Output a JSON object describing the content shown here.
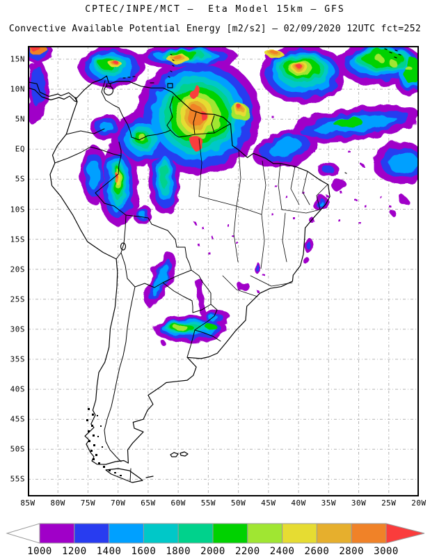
{
  "header": {
    "line1": "CPTEC/INPE/MCT —  Eta Model 15km — GFS",
    "line2": "Convective Available Potential Energy [m2/s2] — 02/09/2020 12UTC fct=252"
  },
  "axes": {
    "lat_ticks": [
      "15N",
      "10N",
      "5N",
      "EQ",
      "5S",
      "10S",
      "15S",
      "20S",
      "25S",
      "30S",
      "35S",
      "40S",
      "45S",
      "50S",
      "55S"
    ],
    "lon_ticks": [
      "85W",
      "80W",
      "75W",
      "70W",
      "65W",
      "60W",
      "55W",
      "50W",
      "45W",
      "40W",
      "35W",
      "30W",
      "25W",
      "20W"
    ]
  },
  "colorbar": {
    "labels": [
      "1000",
      "1200",
      "1400",
      "1600",
      "1800",
      "2000",
      "2200",
      "2400",
      "2600",
      "2800",
      "3000"
    ],
    "colors": [
      "#a000c8",
      "#283cf0",
      "#00a0ff",
      "#00c8c8",
      "#00d28c",
      "#00d200",
      "#a0e632",
      "#e6dc32",
      "#e6af2d",
      "#f08228"
    ],
    "underflow_color": "#ffffff",
    "overflow_color": "#fa3c3c",
    "outline_color": "#999999"
  },
  "chart_data": {
    "type": "heatmap",
    "title": "Convective Available Potential Energy [m2/s2]",
    "model": "Eta Model 15km — GFS",
    "institution": "CPTEC/INPE/MCT",
    "valid": "02/09/2020 12UTC fct=252",
    "lon_range": [
      "85W",
      "20W"
    ],
    "lat_range": [
      "55S",
      "15N"
    ],
    "scale_values": [
      1000,
      1200,
      1400,
      1600,
      1800,
      2000,
      2200,
      2400,
      2600,
      2800,
      3000
    ],
    "scale_colors": [
      "#a000c8",
      "#283cf0",
      "#00a0ff",
      "#00c8c8",
      "#00d28c",
      "#00d200",
      "#a0e632",
      "#e6dc32",
      "#e6af2d",
      "#f08228",
      "#fa3c3c"
    ]
  }
}
